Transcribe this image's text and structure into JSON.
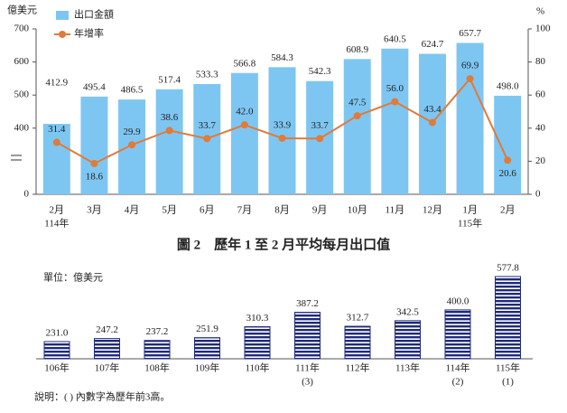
{
  "chart_data": [
    {
      "type": "bar-line",
      "y_label": "億美元",
      "y2_label": "%",
      "categories": [
        "2月",
        "3月",
        "4月",
        "5月",
        "6月",
        "7月",
        "8月",
        "9月",
        "10月",
        "11月",
        "12月",
        "1月",
        "2月"
      ],
      "category_sublabels": [
        "114年",
        null,
        null,
        null,
        null,
        null,
        null,
        null,
        null,
        null,
        null,
        "115年",
        null
      ],
      "series": [
        {
          "name": "出口金額",
          "type": "bar",
          "color": "#7ec6f2",
          "values": [
            412.9,
            495.4,
            486.5,
            517.4,
            533.3,
            566.8,
            584.3,
            542.3,
            608.9,
            640.5,
            624.7,
            657.7,
            498.0
          ],
          "value_labels": [
            "412.9",
            "495.4",
            "486.5",
            "517.4",
            "533.3",
            "566.8",
            "584.3",
            "542.3",
            "608.9",
            "640.5",
            "624.7",
            "657.7",
            "498.0"
          ]
        },
        {
          "name": "年增率",
          "type": "line",
          "axis": "y2",
          "color": "#e07b39",
          "values": [
            31.4,
            18.6,
            29.9,
            38.6,
            33.7,
            42.0,
            33.9,
            33.7,
            47.5,
            56.0,
            43.4,
            69.9,
            20.6
          ],
          "value_labels": [
            "31.4",
            "18.6",
            "29.9",
            "38.6",
            "33.7",
            "42.0",
            "33.9",
            "33.7",
            "47.5",
            "56.0",
            "43.4",
            "69.9",
            "20.6"
          ]
        }
      ],
      "ylim": [
        0,
        700
      ],
      "yticks": [
        0,
        400,
        500,
        600,
        700
      ],
      "broken_axis": true,
      "y2lim": [
        0,
        100
      ],
      "y2ticks": [
        0,
        20,
        40,
        60,
        80,
        100
      ],
      "legend": "top-left"
    },
    {
      "type": "bar",
      "title": "圖 2　歷年 1 至 2 月平均每月出口值",
      "unit_label": "單位：億美元",
      "categories": [
        "106年",
        "107年",
        "108年",
        "109年",
        "110年",
        "111年",
        "112年",
        "113年",
        "114年",
        "115年"
      ],
      "category_sublabels": [
        null,
        null,
        null,
        null,
        null,
        "(3)",
        null,
        null,
        "(2)",
        "(1)"
      ],
      "values": [
        231.0,
        247.2,
        237.2,
        251.9,
        310.3,
        387.2,
        312.7,
        342.5,
        400.0,
        577.8
      ],
      "value_labels": [
        "231.0",
        "247.2",
        "237.2",
        "251.9",
        "310.3",
        "387.2",
        "312.7",
        "342.5",
        "400.0",
        "577.8"
      ],
      "color": "#1f2a7a",
      "note": "說明：( ) 內數字為歷年前3高。"
    }
  ]
}
